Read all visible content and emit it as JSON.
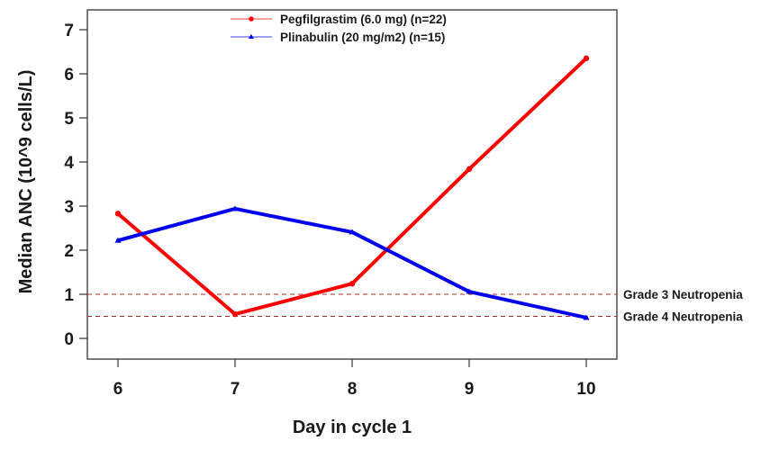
{
  "chart_data": {
    "type": "line",
    "title": "",
    "xlabel": "Day in cycle 1",
    "ylabel": "Median ANC (10^9 cells/L)",
    "x": [
      6,
      7,
      8,
      9,
      10
    ],
    "x_ticks": [
      "6",
      "7",
      "8",
      "9",
      "10"
    ],
    "y_ticks": [
      "0",
      "1",
      "2",
      "3",
      "4",
      "5",
      "6",
      "7"
    ],
    "xlim": [
      5.75,
      10.27
    ],
    "ylim": [
      -0.5,
      7.35
    ],
    "grid": false,
    "legend_position": "top-center",
    "series": [
      {
        "name": "Pegfilgrastim (6.0 mg) (n=22)",
        "color": "#ff0000",
        "marker": "circle",
        "values": [
          2.83,
          0.55,
          1.24,
          3.84,
          6.35
        ]
      },
      {
        "name": "Plinabulin (20 mg/m2) (n=15)",
        "color": "#0000ee",
        "marker": "triangle",
        "values": [
          2.22,
          2.94,
          2.41,
          1.06,
          0.47
        ]
      }
    ],
    "reference_lines": [
      {
        "label": "Grade 3 Neutropenia",
        "value": 1.0,
        "color": "#a52a2a",
        "style": "dashed"
      },
      {
        "label": "Grade 4 Neutropenia",
        "value": 0.5,
        "color": "#a52a2a",
        "style": "dashed"
      }
    ]
  }
}
